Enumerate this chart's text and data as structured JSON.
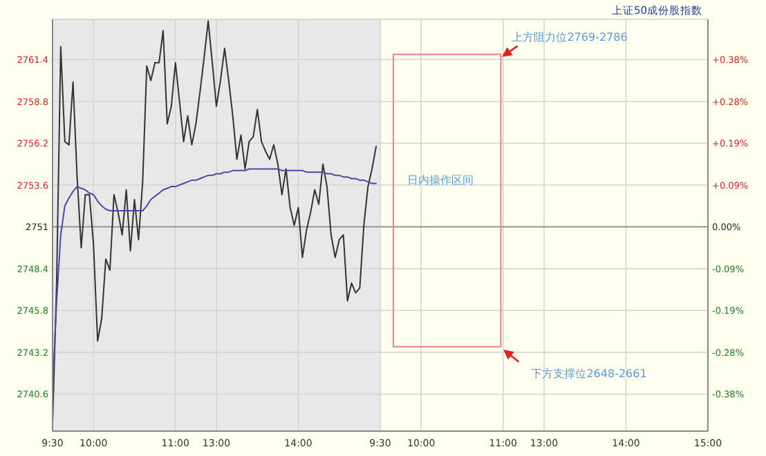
{
  "chart_data": {
    "type": "line",
    "title": "上证50成份股指数",
    "categories": [
      "9:30",
      null,
      null,
      null,
      null,
      null,
      null,
      null,
      null,
      null,
      "10:00",
      null,
      null,
      null,
      null,
      null,
      null,
      null,
      null,
      null,
      null,
      null,
      null,
      null,
      null,
      null,
      null,
      null,
      null,
      null,
      "11:00",
      null,
      null,
      null,
      null,
      null,
      null,
      null,
      null,
      null,
      "13:00",
      null,
      null,
      null,
      null,
      null,
      null,
      null,
      null,
      null,
      null,
      null,
      null,
      null,
      null,
      null,
      null,
      null,
      null,
      null,
      "14:00",
      null,
      null,
      null,
      null,
      null,
      null,
      null,
      null,
      null,
      null,
      null,
      null,
      null,
      null,
      null,
      null,
      null,
      null,
      null,
      "9:30",
      null,
      null,
      null,
      null,
      null,
      null,
      null,
      null,
      null,
      "10:00",
      null,
      null,
      null,
      null,
      null,
      null,
      null,
      null,
      null,
      null,
      null,
      null,
      null,
      null,
      null,
      null,
      null,
      null,
      null,
      "11:00",
      null,
      null,
      null,
      null,
      null,
      null,
      null,
      null,
      null,
      "13:00",
      null,
      null,
      null,
      null,
      null,
      null,
      null,
      null,
      null,
      null,
      null,
      null,
      null,
      null,
      null,
      null,
      null,
      null,
      null,
      "14:00",
      null,
      null,
      null,
      null,
      null,
      null,
      null,
      null,
      null,
      null,
      null,
      null,
      null,
      null,
      null,
      null,
      null,
      null,
      null,
      "15:00"
    ],
    "series": [
      {
        "color": "#333333",
        "values": [
          2738.7,
          2747.5,
          2762.2,
          2756.3,
          2756.1,
          2760.0,
          2754.1,
          2749.7,
          2753.0,
          2753.0,
          2749.9,
          2743.9,
          2745.3,
          2749.0,
          2748.3,
          2753.0,
          2751.9,
          2750.5,
          2753.3,
          2749.5,
          2752.7,
          2750.2,
          2753.8,
          2761.0,
          2760.1,
          2761.2,
          2761.2,
          2763.2,
          2757.4,
          2758.5,
          2761.2,
          2758.8,
          2756.3,
          2757.9,
          2756.1,
          2757.4,
          2759.4,
          2761.5,
          2763.8,
          2761.2,
          2758.5,
          2760.1,
          2762.1,
          2760.1,
          2757.9,
          2755.2,
          2756.7,
          2754.6,
          2756.3,
          2756.6,
          2758.3,
          2756.3,
          2755.7,
          2755.2,
          2756.1,
          2754.9,
          2753.0,
          2754.6,
          2752.2,
          2751.1,
          2752.2,
          2749.1,
          2750.8,
          2751.9,
          2753.3,
          2752.4,
          2754.9,
          2753.5,
          2750.5,
          2749.1,
          2750.2,
          2750.5,
          2746.4,
          2747.5,
          2746.9,
          2747.2,
          2751.1,
          2753.5,
          2754.6,
          2756.0,
          null,
          null,
          null,
          null,
          null,
          null,
          null,
          null,
          null,
          null,
          null,
          null,
          null,
          null,
          null,
          null,
          null,
          null,
          null,
          null,
          null,
          null,
          null,
          null,
          null,
          null,
          null,
          null,
          null,
          null,
          null,
          null,
          null,
          null,
          null,
          null,
          null,
          null,
          null,
          null,
          null,
          null,
          null,
          null,
          null,
          null,
          null,
          null,
          null,
          null,
          null,
          null,
          null,
          null,
          null,
          null,
          null,
          null,
          null,
          null,
          null,
          null,
          null,
          null,
          null,
          null,
          null,
          null,
          null,
          null,
          null,
          null,
          null,
          null,
          null,
          null,
          null,
          null,
          null,
          null,
          null
        ]
      },
      {
        "color": "#4848a8",
        "values": [
          2740.9,
          2746.4,
          2750.5,
          2752.3,
          2752.8,
          2753.2,
          2753.5,
          2753.4,
          2753.3,
          2753.1,
          2753.0,
          2752.6,
          2752.3,
          2752.1,
          2752.0,
          2752.0,
          2752.0,
          2752.0,
          2752.0,
          2752.0,
          2752.0,
          2752.0,
          2752.0,
          2752.3,
          2752.7,
          2752.9,
          2753.1,
          2753.3,
          2753.4,
          2753.5,
          2753.5,
          2753.6,
          2753.7,
          2753.8,
          2753.9,
          2753.9,
          2754.0,
          2754.1,
          2754.2,
          2754.2,
          2754.3,
          2754.3,
          2754.4,
          2754.4,
          2754.5,
          2754.5,
          2754.5,
          2754.5,
          2754.6,
          2754.6,
          2754.6,
          2754.6,
          2754.6,
          2754.6,
          2754.6,
          2754.6,
          2754.5,
          2754.5,
          2754.5,
          2754.5,
          2754.5,
          2754.5,
          2754.4,
          2754.4,
          2754.4,
          2754.4,
          2754.4,
          2754.3,
          2754.3,
          2754.2,
          2754.2,
          2754.1,
          2754.1,
          2754.0,
          2754.0,
          2753.9,
          2753.9,
          2753.8,
          2753.7,
          2753.7,
          null,
          null,
          null,
          null,
          null,
          null,
          null,
          null,
          null,
          null,
          null,
          null,
          null,
          null,
          null,
          null,
          null,
          null,
          null,
          null,
          null,
          null,
          null,
          null,
          null,
          null,
          null,
          null,
          null,
          null,
          null,
          null,
          null,
          null,
          null,
          null,
          null,
          null,
          null,
          null,
          null,
          null,
          null,
          null,
          null,
          null,
          null,
          null,
          null,
          null,
          null,
          null,
          null,
          null,
          null,
          null,
          null,
          null,
          null,
          null,
          null,
          null,
          null,
          null,
          null,
          null,
          null,
          null,
          null,
          null,
          null,
          null,
          null,
          null,
          null,
          null,
          null,
          null,
          null,
          null,
          null
        ]
      }
    ],
    "ylim": [
      2738.3,
      2763.9
    ],
    "y2lim": [
      -0.4617,
      0.4689
    ],
    "yticks": [
      2740.6,
      2743.2,
      2745.8,
      2748.4,
      2751.0,
      2753.6,
      2756.2,
      2758.8,
      2761.4
    ],
    "y2ticks": [
      {
        "value": -0.378,
        "label": "-0.38%"
      },
      {
        "value": -0.283,
        "label": "-0.28%"
      },
      {
        "value": -0.189,
        "label": "-0.19%"
      },
      {
        "value": -0.0945,
        "label": "-0.09%"
      },
      {
        "value": 0,
        "label": "0.00%"
      },
      {
        "value": 0.0945,
        "label": "+0.09%"
      },
      {
        "value": 0.189,
        "label": "+0.19%"
      },
      {
        "value": 0.283,
        "label": "+0.28%"
      },
      {
        "value": 0.378,
        "label": "+0.38%"
      }
    ],
    "grid": true,
    "ref_lines": [
      {
        "axis": "y",
        "value": 2751.0,
        "color": "#999999"
      }
    ],
    "annotations": [
      "上方阻力位2769-2786",
      "下方支撑位2648-2661",
      "日内操作区间"
    ]
  }
}
